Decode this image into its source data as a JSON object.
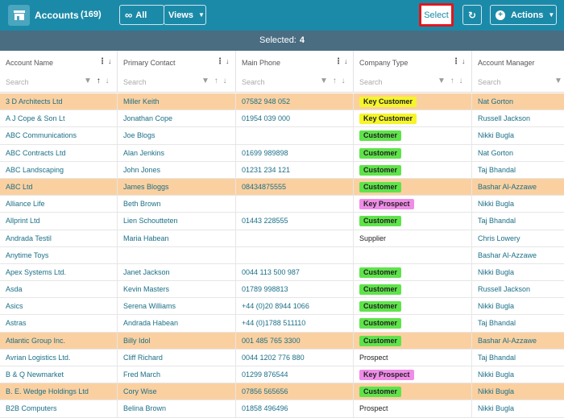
{
  "toolbar": {
    "title": "Accounts",
    "count": "(169)",
    "all_label": "All",
    "views_label": "Views",
    "select_label": "Select",
    "actions_label": "Actions"
  },
  "selection": {
    "label": "Selected:",
    "count": "4"
  },
  "columns": [
    {
      "label": "Account Name",
      "placeholder": "Search"
    },
    {
      "label": "Primary Contact",
      "placeholder": "Search"
    },
    {
      "label": "Main Phone",
      "placeholder": "Search"
    },
    {
      "label": "Company Type",
      "placeholder": "Search"
    },
    {
      "label": "Account Manager",
      "placeholder": "Search"
    }
  ],
  "rows": [
    {
      "name": "3 D Architects Ltd",
      "contact": "Miller Keith",
      "phone": "07582 948 052",
      "type": "Key Customer",
      "manager": "Nat Gorton",
      "selected": true
    },
    {
      "name": "A J Cope & Son Lt",
      "contact": "Jonathan Cope",
      "phone": "01954 039 000",
      "type": "Key Customer",
      "manager": "Russell Jackson",
      "selected": false
    },
    {
      "name": "ABC Communications",
      "contact": "Joe Blogs",
      "phone": "",
      "type": "Customer",
      "manager": "Nikki Bugla",
      "selected": false
    },
    {
      "name": "ABC Contracts Ltd",
      "contact": "Alan Jenkins",
      "phone": "01699 989898",
      "type": "Customer",
      "manager": "Nat Gorton",
      "selected": false
    },
    {
      "name": "ABC Landscaping",
      "contact": "John Jones",
      "phone": "01231 234 121",
      "type": "Customer",
      "manager": "Taj Bhandal",
      "selected": false
    },
    {
      "name": "ABC Ltd",
      "contact": "James Bloggs",
      "phone": "08434875555",
      "type": "Customer",
      "manager": "Bashar Al-Azzawe",
      "selected": true
    },
    {
      "name": "Alliance Life",
      "contact": "Beth Brown",
      "phone": "",
      "type": "Key Prospect",
      "manager": "Nikki Bugla",
      "selected": false
    },
    {
      "name": "Allprint Ltd",
      "contact": "Lien Schoutteten",
      "phone": "01443 228555",
      "type": "Customer",
      "manager": "Taj Bhandal",
      "selected": false
    },
    {
      "name": "Andrada Testil",
      "contact": "Maria Habean",
      "phone": "",
      "type": "Supplier",
      "manager": "Chris Lowery",
      "selected": false
    },
    {
      "name": "Anytime Toys",
      "contact": "",
      "phone": "",
      "type": "",
      "manager": "Bashar Al-Azzawe",
      "selected": false
    },
    {
      "name": "Apex Systems Ltd.",
      "contact": "Janet Jackson",
      "phone": "0044 113 500 987",
      "type": "Customer",
      "manager": "Nikki Bugla",
      "selected": false
    },
    {
      "name": "Asda",
      "contact": "Kevin Masters",
      "phone": "01789 998813",
      "type": "Customer",
      "manager": "Russell Jackson",
      "selected": false
    },
    {
      "name": "Asics",
      "contact": "Serena Williams",
      "phone": "+44 (0)20 8944 1066",
      "type": "Customer",
      "manager": "Nikki Bugla",
      "selected": false
    },
    {
      "name": "Astras",
      "contact": "Andrada Habean",
      "phone": "+44 (0)1788 511110",
      "type": "Customer",
      "manager": "Taj Bhandal",
      "selected": false
    },
    {
      "name": "Atlantic Group Inc.",
      "contact": "Billy Idol",
      "phone": "001 485 765 3300",
      "type": "Customer",
      "manager": "Bashar Al-Azzawe",
      "selected": true
    },
    {
      "name": "Avrian Logistics Ltd.",
      "contact": "Cliff Richard",
      "phone": "0044 1202 776 880",
      "type": "Prospect",
      "manager": "Taj Bhandal",
      "selected": false
    },
    {
      "name": "B & Q Newmarket",
      "contact": "Fred March",
      "phone": "01299 876544",
      "type": "Key Prospect",
      "manager": "Nikki Bugla",
      "selected": false
    },
    {
      "name": "B. E. Wedge Holdings Ltd",
      "contact": "Cory Wise",
      "phone": "07856 565656",
      "type": "Customer",
      "manager": "Nikki Bugla",
      "selected": true
    },
    {
      "name": "B2B Computers",
      "contact": "Belina Brown",
      "phone": "01858 496496",
      "type": "Prospect",
      "manager": "Nikki Bugla",
      "selected": false
    }
  ],
  "colors": {
    "header": "#1b8aa8",
    "selection_bar": "#4a6d82",
    "selected_row": "#fbd0a0",
    "key_customer": "#f5f52a",
    "customer": "#5fe34a",
    "key_prospect": "#f08ce8"
  },
  "icons": [
    "store-icon",
    "infinity-icon",
    "refresh-icon",
    "plus-circle-icon",
    "filter-icon",
    "sort-up-icon",
    "sort-down-icon",
    "column-menu-icon"
  ]
}
